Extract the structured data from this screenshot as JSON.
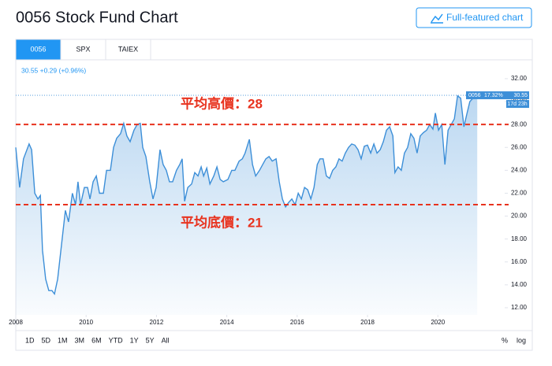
{
  "title": "0056 Stock Fund Chart",
  "button": "Full-featured chart",
  "tabs": [
    "0056",
    "SPX",
    "TAIEX"
  ],
  "active_tab": 0,
  "quote": "30.55 +0.29 (+0.96%)",
  "ranges": [
    "1D",
    "5D",
    "1M",
    "3M",
    "6M",
    "YTD",
    "1Y",
    "5Y",
    "All"
  ],
  "scale_options": [
    "%",
    "log"
  ],
  "chart_data": {
    "type": "area",
    "color": "#3d8fd8",
    "x": [
      2008.0,
      2008.11,
      2008.22,
      2008.38,
      2008.45,
      2008.54,
      2008.63,
      2008.7,
      2008.76,
      2008.85,
      2008.94,
      2009.03,
      2009.1,
      2009.19,
      2009.3,
      2009.41,
      2009.5,
      2009.61,
      2009.7,
      2009.77,
      2009.84,
      2009.95,
      2010.04,
      2010.11,
      2010.2,
      2010.29,
      2010.38,
      2010.49,
      2010.58,
      2010.69,
      2010.78,
      2010.87,
      2010.98,
      2011.07,
      2011.16,
      2011.25,
      2011.36,
      2011.45,
      2011.54,
      2011.61,
      2011.7,
      2011.81,
      2011.9,
      2011.99,
      2012.1,
      2012.19,
      2012.28,
      2012.37,
      2012.46,
      2012.57,
      2012.66,
      2012.73,
      2012.8,
      2012.89,
      2013.0,
      2013.09,
      2013.18,
      2013.27,
      2013.34,
      2013.43,
      2013.52,
      2013.63,
      2013.72,
      2013.81,
      2013.9,
      2014.03,
      2014.14,
      2014.23,
      2014.35,
      2014.44,
      2014.52,
      2014.64,
      2014.73,
      2014.82,
      2014.93,
      2015.02,
      2015.11,
      2015.2,
      2015.29,
      2015.4,
      2015.49,
      2015.58,
      2015.67,
      2015.76,
      2015.85,
      2015.94,
      2016.03,
      2016.12,
      2016.21,
      2016.3,
      2016.39,
      2016.48,
      2016.57,
      2016.65,
      2016.74,
      2016.83,
      2016.92,
      2017.01,
      2017.1,
      2017.19,
      2017.28,
      2017.37,
      2017.46,
      2017.55,
      2017.64,
      2017.73,
      2017.82,
      2017.91,
      2018.0,
      2018.09,
      2018.18,
      2018.27,
      2018.36,
      2018.45,
      2018.54,
      2018.63,
      2018.72,
      2018.78,
      2018.87,
      2018.96,
      2019.05,
      2019.14,
      2019.23,
      2019.32,
      2019.41,
      2019.5,
      2019.59,
      2019.68,
      2019.77,
      2019.86,
      2019.93,
      2020.02,
      2020.11,
      2020.2,
      2020.29,
      2020.38,
      2020.47,
      2020.56,
      2020.65,
      2020.74,
      2020.83,
      2020.91,
      2021.0,
      2021.12
    ],
    "values": [
      26,
      22.5,
      25,
      26.3,
      25.8,
      22,
      21.5,
      21.8,
      17,
      14.5,
      13.5,
      13.5,
      13.2,
      14.5,
      17.5,
      20.5,
      19.5,
      22,
      21,
      23,
      21,
      22.5,
      22.5,
      21.5,
      23,
      23.5,
      22,
      22,
      24,
      24,
      26,
      26.8,
      27.2,
      28.1,
      27,
      26.5,
      27.5,
      28,
      28.1,
      26,
      25.2,
      23,
      21.5,
      22.5,
      25.8,
      24.5,
      24,
      23,
      23,
      24,
      24.5,
      25,
      21.3,
      22.5,
      22.8,
      23.8,
      23.5,
      24.3,
      23.5,
      24.2,
      22.8,
      23.5,
      24.3,
      23.2,
      23,
      23.2,
      24,
      24,
      24.8,
      25,
      25.5,
      26.7,
      24.5,
      23.5,
      24,
      24.5,
      25,
      25.2,
      24.8,
      25,
      23,
      21.5,
      20.8,
      21.2,
      21.5,
      21,
      22,
      21.5,
      22.5,
      22.3,
      21.5,
      22.5,
      24.5,
      25,
      25,
      23.5,
      23.3,
      24,
      24.3,
      25,
      24.8,
      25.5,
      26,
      26.3,
      26.2,
      25.8,
      25,
      26.1,
      26.2,
      25.5,
      26.3,
      25.5,
      25.8,
      26.5,
      27.5,
      27.8,
      27,
      23.8,
      24.3,
      24,
      25.5,
      26,
      27.2,
      26.8,
      25.5,
      27,
      27.3,
      27.5,
      28,
      27.6,
      29,
      27.5,
      28,
      24.5,
      27.5,
      28,
      28.5,
      30.5,
      30.3,
      27.8,
      29,
      30,
      30.3,
      30.55
    ],
    "xlim": [
      2008,
      2021.9
    ],
    "xticks": [
      2008,
      2010,
      2012,
      2014,
      2016,
      2018,
      2020
    ],
    "ylim": [
      11.38,
      33.51
    ],
    "yticks": [
      {
        "value": 12,
        "label": "12.00"
      },
      {
        "value": 14,
        "label": "14.00"
      },
      {
        "value": 16,
        "label": "16.00"
      },
      {
        "value": 18,
        "label": "18.00"
      },
      {
        "value": 20,
        "label": "20.00"
      },
      {
        "value": 22,
        "label": "22.00"
      },
      {
        "value": 24,
        "label": "24.00"
      },
      {
        "value": 26,
        "label": "26.00"
      },
      {
        "value": 28,
        "label": "28.00"
      },
      {
        "value": 30,
        "label": "30.00"
      },
      {
        "value": 32,
        "label": "32.00"
      }
    ],
    "reference_lines": [
      {
        "value": 28,
        "label": "平均高價：28",
        "color": "#e8321e"
      },
      {
        "value": 21,
        "label": "平均底價：21",
        "color": "#e8321e"
      }
    ],
    "last_label": {
      "name": "0056",
      "change": "17.32%",
      "value": "30.55",
      "countdown": "17d 23h"
    }
  }
}
